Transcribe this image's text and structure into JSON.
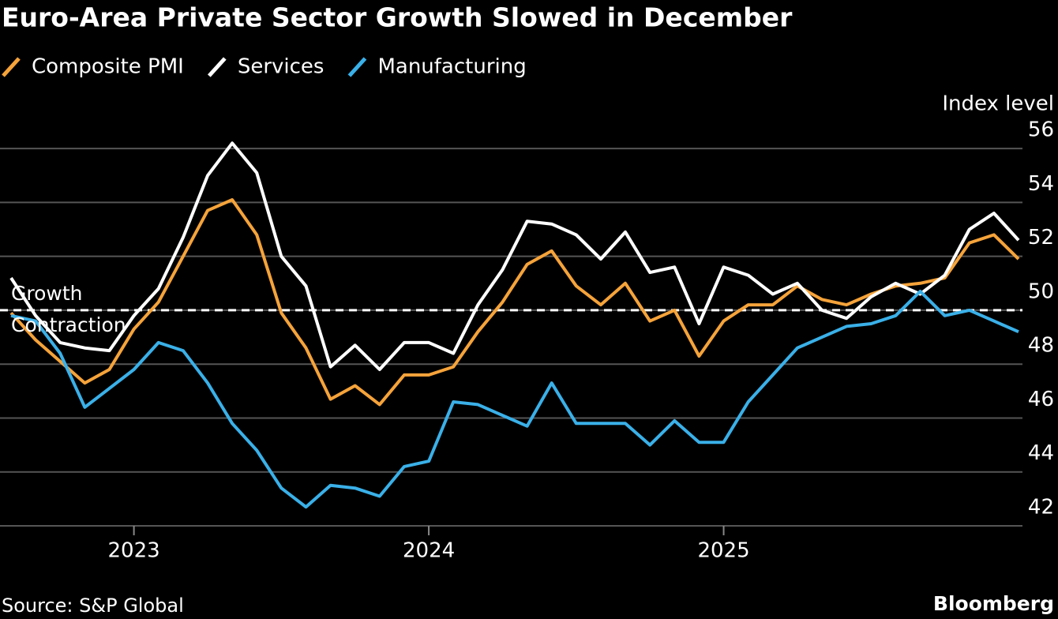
{
  "chart_data": {
    "type": "line",
    "title": "Euro-Area Private Sector Growth Slowed in December",
    "y_label": "Index level",
    "source": "Source: S&P Global",
    "brand": "Bloomberg",
    "x": [
      "2022-07",
      "2022-08",
      "2022-09",
      "2022-10",
      "2022-11",
      "2022-12",
      "2023-01",
      "2023-02",
      "2023-03",
      "2023-04",
      "2023-05",
      "2023-06",
      "2023-07",
      "2023-08",
      "2023-09",
      "2023-10",
      "2023-11",
      "2023-12",
      "2024-01",
      "2024-02",
      "2024-03",
      "2024-04",
      "2024-05",
      "2024-06",
      "2024-07",
      "2024-08",
      "2024-09",
      "2024-10",
      "2024-11",
      "2024-12",
      "2025-01",
      "2025-02",
      "2025-03",
      "2025-04",
      "2025-05",
      "2025-06",
      "2025-07",
      "2025-08",
      "2025-09",
      "2025-10",
      "2025-11",
      "2025-12"
    ],
    "series": [
      {
        "name": "Composite PMI",
        "color": "#f5a33a",
        "values": [
          49.9,
          48.9,
          48.1,
          47.3,
          47.8,
          49.3,
          50.3,
          52.0,
          53.7,
          54.1,
          52.8,
          49.9,
          48.6,
          46.7,
          47.2,
          46.5,
          47.6,
          47.6,
          47.9,
          49.2,
          50.3,
          51.7,
          52.2,
          50.9,
          50.2,
          51.0,
          49.6,
          50.0,
          48.3,
          49.6,
          50.2,
          50.2,
          50.9,
          50.4,
          50.2,
          50.6,
          50.9,
          51.0,
          51.2,
          52.5,
          52.8,
          51.9
        ]
      },
      {
        "name": "Services",
        "color": "#ffffff",
        "values": [
          51.2,
          49.8,
          48.8,
          48.6,
          48.5,
          49.8,
          50.8,
          52.7,
          55.0,
          56.2,
          55.1,
          52.0,
          50.9,
          47.9,
          48.7,
          47.8,
          48.8,
          48.8,
          48.4,
          50.2,
          51.5,
          53.3,
          53.2,
          52.8,
          51.9,
          52.9,
          51.4,
          51.6,
          49.5,
          51.6,
          51.3,
          50.6,
          51.0,
          50.0,
          49.7,
          50.5,
          51.0,
          50.6,
          51.3,
          53.0,
          53.6,
          52.6
        ]
      },
      {
        "name": "Manufacturing",
        "color": "#3ab0e8",
        "values": [
          49.8,
          49.6,
          48.4,
          46.4,
          47.1,
          47.8,
          48.8,
          48.5,
          47.3,
          45.8,
          44.8,
          43.4,
          42.7,
          43.5,
          43.4,
          43.1,
          44.2,
          44.4,
          46.6,
          46.5,
          46.1,
          45.7,
          47.3,
          45.8,
          45.8,
          45.8,
          45.0,
          45.9,
          45.1,
          45.1,
          46.6,
          47.6,
          48.6,
          49.0,
          49.4,
          49.5,
          49.8,
          50.7,
          49.8,
          50.0,
          49.6,
          49.2
        ]
      }
    ],
    "reference_line": {
      "value": 50,
      "color": "#ffffff",
      "labels": [
        "Growth",
        "Contraction"
      ]
    },
    "xlim": [
      "2022-07",
      "2025-12"
    ],
    "xticks": [
      {
        "value": "2023-01",
        "label": "2023"
      },
      {
        "value": "2024-01",
        "label": "2024"
      },
      {
        "value": "2025-01",
        "label": "2025"
      }
    ],
    "ylim": [
      42,
      57
    ],
    "yticks": [
      42,
      44,
      46,
      48,
      50,
      52,
      54,
      56
    ],
    "grid": true
  }
}
